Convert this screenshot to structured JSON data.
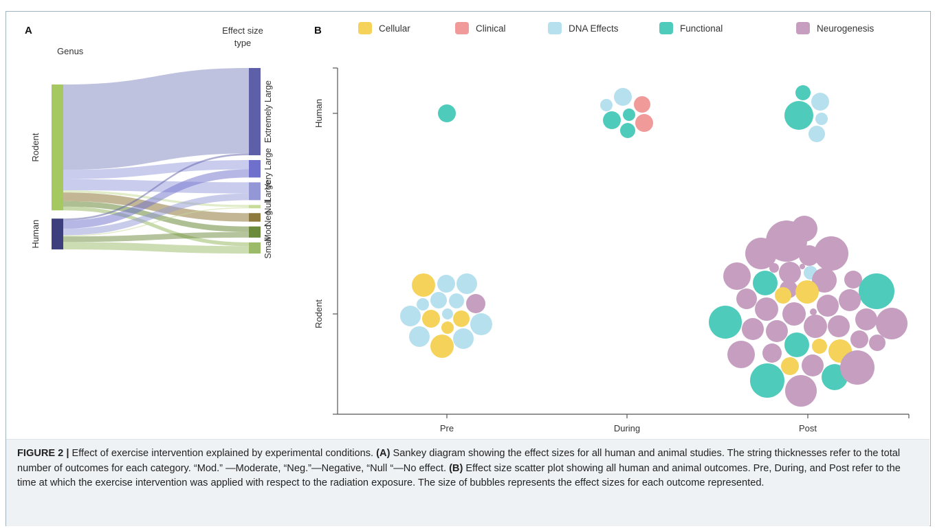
{
  "panel_a": {
    "label": "A",
    "left_header": "Genus",
    "right_header_line1": "Effect size",
    "right_header_line2": "type",
    "sources": [
      {
        "label": "Rodent",
        "color": "#a5c860"
      },
      {
        "label": "Human",
        "color": "#3d3e7e"
      }
    ],
    "targets": [
      {
        "label": "Extremely Large",
        "color": "#5d60a8"
      },
      {
        "label": "Very Large",
        "color": "#6e70cc"
      },
      {
        "label": "Large",
        "color": "#9497d6"
      },
      {
        "label": "Null",
        "color": "#c8dc9a"
      },
      {
        "label": "Neg.",
        "color": "#8f7a3e"
      },
      {
        "label": "Mod.",
        "color": "#6b8a3c"
      },
      {
        "label": "Small",
        "color": "#9bbb68"
      }
    ]
  },
  "panel_b": {
    "label": "B",
    "legend": [
      {
        "label": "Cellular",
        "color": "#f5d35a"
      },
      {
        "label": "Clinical",
        "color": "#f19a9a"
      },
      {
        "label": "DNA Effects",
        "color": "#b6e0ee"
      },
      {
        "label": "Functional",
        "color": "#4fcbbc"
      },
      {
        "label": "Neurogenesis",
        "color": "#c59ec0"
      }
    ]
  },
  "chart_data": [
    {
      "type": "sankey",
      "title": "",
      "nodes_left": [
        "Rodent",
        "Human"
      ],
      "nodes_right": [
        "Extremely Large",
        "Very Large",
        "Large",
        "Null",
        "Neg.",
        "Mod.",
        "Small"
      ],
      "column_labels": [
        "Genus",
        "Effect size type"
      ],
      "links": [
        {
          "source": "Rodent",
          "target": "Extremely Large",
          "value": 230
        },
        {
          "source": "Rodent",
          "target": "Very Large",
          "value": 25
        },
        {
          "source": "Rodent",
          "target": "Large",
          "value": 30
        },
        {
          "source": "Rodent",
          "target": "Null",
          "value": 6
        },
        {
          "source": "Rodent",
          "target": "Neg.",
          "value": 23
        },
        {
          "source": "Rodent",
          "target": "Mod.",
          "value": 15
        },
        {
          "source": "Rodent",
          "target": "Small",
          "value": 10
        },
        {
          "source": "Human",
          "target": "Extremely Large",
          "value": 5
        },
        {
          "source": "Human",
          "target": "Very Large",
          "value": 22
        },
        {
          "source": "Human",
          "target": "Large",
          "value": 18
        },
        {
          "source": "Human",
          "target": "Null",
          "value": 3
        },
        {
          "source": "Human",
          "target": "Mod.",
          "value": 15
        },
        {
          "source": "Human",
          "target": "Small",
          "value": 20
        }
      ]
    },
    {
      "type": "scatter",
      "subtype": "bubble",
      "title": "",
      "x_categories": [
        "Pre",
        "During",
        "Post"
      ],
      "y_categories": [
        "Human",
        "Rodent"
      ],
      "series": [
        {
          "name": "Cellular",
          "points": [
            {
              "x": "Pre",
              "y": "Rodent",
              "count": 6
            },
            {
              "x": "Post",
              "y": "Rodent",
              "count": 6
            }
          ]
        },
        {
          "name": "Clinical",
          "points": [
            {
              "x": "During",
              "y": "Human",
              "count": 2
            }
          ]
        },
        {
          "name": "DNA Effects",
          "points": [
            {
              "x": "Pre",
              "y": "Rodent",
              "count": 11
            },
            {
              "x": "During",
              "y": "Human",
              "count": 2
            },
            {
              "x": "Post",
              "y": "Human",
              "count": 3
            },
            {
              "x": "Post",
              "y": "Rodent",
              "count": 1
            }
          ]
        },
        {
          "name": "Functional",
          "points": [
            {
              "x": "Pre",
              "y": "Human",
              "count": 1
            },
            {
              "x": "During",
              "y": "Human",
              "count": 3
            },
            {
              "x": "Post",
              "y": "Human",
              "count": 2
            },
            {
              "x": "Post",
              "y": "Rodent",
              "count": 6
            }
          ]
        },
        {
          "name": "Neurogenesis",
          "points": [
            {
              "x": "Pre",
              "y": "Rodent",
              "count": 1
            },
            {
              "x": "Post",
              "y": "Rodent",
              "count": 30
            }
          ]
        }
      ]
    }
  ],
  "caption": {
    "figure_label": "FIGURE 2 |",
    "text_1": " Effect of exercise intervention explained by experimental conditions. ",
    "label_a": "(A)",
    "text_2": " Sankey diagram showing the effect sizes for all human and animal studies. The string thicknesses refer to the total number of outcomes for each category. “Mod.” —Moderate, “Neg.”—Negative, “Null “—No effect. ",
    "label_b": "(B)",
    "text_3": " Effect size scatter plot showing all human and animal outcomes. Pre, During, and Post refer to the time at which the exercise intervention was applied with respect to the radiation exposure. The size of bubbles represents the effect sizes for each outcome represented."
  }
}
